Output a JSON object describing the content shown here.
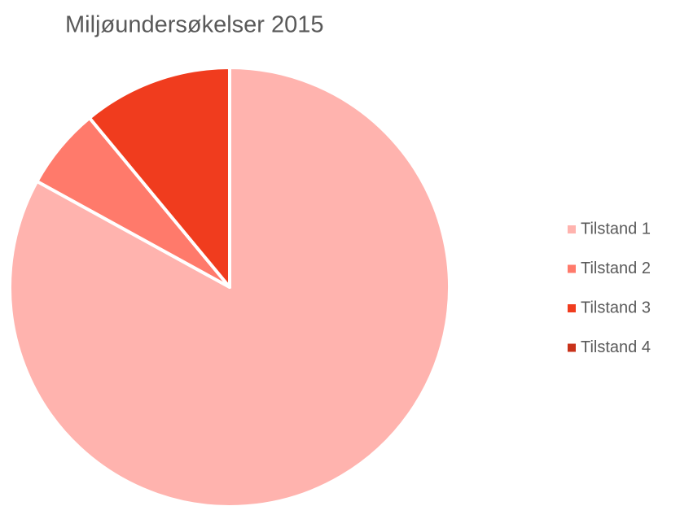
{
  "chart_data": {
    "type": "pie",
    "title": "Miljøundersøkelser  2015",
    "categories": [
      "Tilstand 1",
      "Tilstand 2",
      "Tilstand 3",
      "Tilstand 4"
    ],
    "values": [
      83,
      6,
      11,
      0
    ],
    "colors": [
      "#ffb3ae",
      "#ff7a6b",
      "#f03c1e",
      "#c8321a"
    ],
    "legend": "right"
  }
}
